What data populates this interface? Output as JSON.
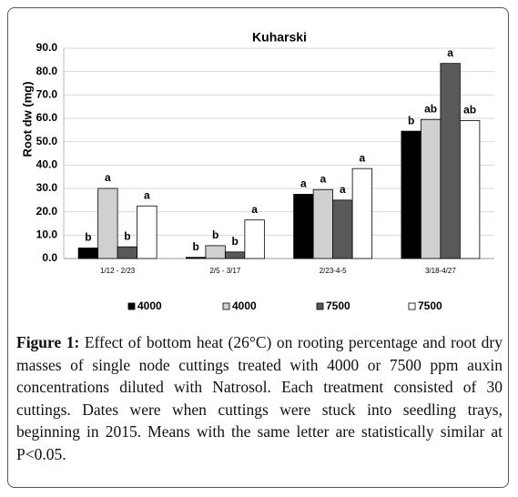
{
  "chart_data": {
    "type": "bar",
    "title": "Kuharski",
    "y_label": "Root dw (mg)",
    "categories": [
      "1/12 - 2/23",
      "2/5 - 3/17",
      "2/23-4-5",
      "3/18-4/27"
    ],
    "series": [
      {
        "name": "4000",
        "color": "#000000",
        "values": [
          4.5,
          0.5,
          27.5,
          54.5
        ],
        "letters": [
          "b",
          "b",
          "a",
          "b"
        ]
      },
      {
        "name": "4000",
        "color": "#d0d0d0",
        "values": [
          30,
          5.5,
          29.5,
          59.5
        ],
        "letters": [
          "a",
          "b",
          "a",
          "ab"
        ]
      },
      {
        "name": "7500",
        "color": "#595959",
        "values": [
          5,
          2.8,
          25,
          83.5
        ],
        "letters": [
          "b",
          "b",
          "a",
          "a"
        ]
      },
      {
        "name": "7500",
        "color": "#ffffff",
        "values": [
          22.5,
          16.5,
          38.5,
          59
        ],
        "letters": [
          "a",
          "a",
          "a",
          "ab"
        ]
      }
    ],
    "ylim": [
      0,
      90
    ],
    "yticks": [
      {
        "value": 0,
        "label": "0.0"
      },
      {
        "value": 10,
        "label": "10.0"
      },
      {
        "value": 20,
        "label": "20.0"
      },
      {
        "value": 30,
        "label": "30.0"
      },
      {
        "value": 40,
        "label": "40.0"
      },
      {
        "value": 50,
        "label": "50.0"
      },
      {
        "value": 60,
        "label": "60.0"
      },
      {
        "value": 70,
        "label": "70.0"
      },
      {
        "value": 80,
        "label": "80.0"
      },
      {
        "value": 90,
        "label": "90.0"
      }
    ],
    "grid": true,
    "figure_label": "Figure 1:",
    "caption": "Effect of bottom heat (26°C) on rooting percentage and root dry masses of single node cuttings treated with 4000 or 7500 ppm auxin concentrations diluted with Natrosol. Each treatment consisted of 30 cuttings. Dates were when cuttings were stuck into seedling trays, beginning in 2015. Means with the same letter are statistically similar at P<0.05."
  }
}
